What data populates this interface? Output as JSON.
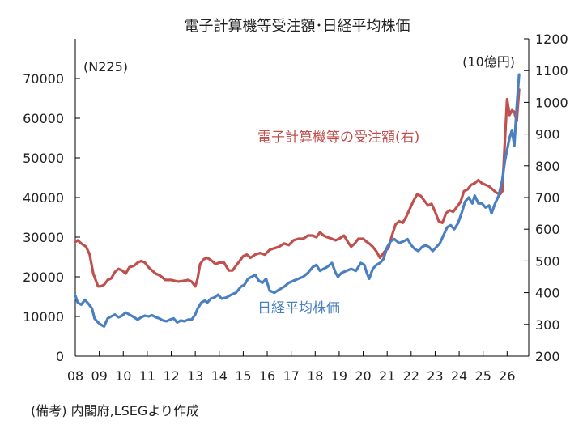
{
  "chart_data": {
    "type": "line",
    "title": "電子計算機等受注額･日経平均株価",
    "left_unit_label": "(N225)",
    "right_unit_label": "(10億円)",
    "note": "(備考) 内閣府,LSEGより作成",
    "x_tick_labels": [
      "08",
      "09",
      "10",
      "11",
      "12",
      "13",
      "14",
      "15",
      "16",
      "17",
      "18",
      "19",
      "20",
      "21",
      "22",
      "23",
      "24",
      "25",
      "26"
    ],
    "x_range": [
      2008.0,
      2026.9
    ],
    "y_left": {
      "range": [
        0,
        80000
      ],
      "ticks": [
        0,
        10000,
        20000,
        30000,
        40000,
        50000,
        60000,
        70000
      ]
    },
    "y_right": {
      "range": [
        200,
        1200
      ],
      "ticks": [
        200,
        300,
        400,
        500,
        600,
        700,
        800,
        900,
        1000,
        1100,
        1200
      ]
    },
    "grid": false,
    "colors": {
      "nikkei": "#4a7fc1",
      "orders": "#c0504d",
      "axis": "#000000"
    },
    "series": [
      {
        "name": "電子計算機等の受注額(右)",
        "axis": "right",
        "color": "#c0504d",
        "x": [
          2008.0,
          2008.1,
          2008.25,
          2008.45,
          2008.6,
          2008.75,
          2008.95,
          2009.05,
          2009.2,
          2009.35,
          2009.5,
          2009.65,
          2009.8,
          2009.95,
          2010.1,
          2010.25,
          2010.45,
          2010.6,
          2010.75,
          2010.9,
          2011.05,
          2011.2,
          2011.35,
          2011.5,
          2011.6,
          2011.75,
          2011.9,
          2012.0,
          2012.15,
          2012.3,
          2012.5,
          2012.7,
          2012.85,
          2013.0,
          2013.1,
          2013.2,
          2013.35,
          2013.5,
          2013.7,
          2013.85,
          2014.0,
          2014.2,
          2014.4,
          2014.55,
          2014.7,
          2014.85,
          2015.0,
          2015.15,
          2015.3,
          2015.5,
          2015.7,
          2015.9,
          2016.1,
          2016.3,
          2016.5,
          2016.7,
          2016.9,
          2017.1,
          2017.3,
          2017.5,
          2017.7,
          2017.9,
          2018.05,
          2018.2,
          2018.35,
          2018.5,
          2018.7,
          2018.85,
          2019.0,
          2019.2,
          2019.4,
          2019.5,
          2019.65,
          2019.8,
          2020.0,
          2020.15,
          2020.25,
          2020.4,
          2020.55,
          2020.7,
          2020.9,
          2021.05,
          2021.2,
          2021.35,
          2021.5,
          2021.65,
          2021.8,
          2021.95,
          2022.1,
          2022.25,
          2022.4,
          2022.55,
          2022.7,
          2022.85,
          2023.0,
          2023.15,
          2023.3,
          2023.45,
          2023.6,
          2023.75,
          2023.9,
          2024.05,
          2024.2,
          2024.35,
          2024.5,
          2024.65,
          2024.8,
          2024.95,
          2025.1,
          2025.25,
          2025.4,
          2025.55,
          2025.7,
          2025.8,
          2025.9,
          2026.0,
          2026.1,
          2026.2,
          2026.3,
          2026.4,
          2026.5
        ],
        "values": [
          560,
          565,
          555,
          545,
          520,
          460,
          420,
          420,
          425,
          440,
          445,
          465,
          475,
          470,
          460,
          480,
          485,
          495,
          500,
          495,
          480,
          470,
          460,
          455,
          450,
          440,
          440,
          440,
          437,
          435,
          437,
          440,
          435,
          420,
          445,
          490,
          505,
          510,
          500,
          490,
          495,
          495,
          470,
          470,
          485,
          500,
          515,
          520,
          510,
          520,
          525,
          520,
          535,
          540,
          545,
          555,
          550,
          565,
          570,
          570,
          580,
          580,
          575,
          590,
          580,
          575,
          570,
          565,
          570,
          580,
          555,
          545,
          555,
          570,
          570,
          560,
          555,
          545,
          530,
          510,
          530,
          540,
          580,
          615,
          625,
          620,
          640,
          665,
          690,
          710,
          705,
          690,
          675,
          680,
          655,
          625,
          620,
          650,
          660,
          655,
          670,
          685,
          720,
          725,
          740,
          745,
          755,
          745,
          740,
          735,
          725,
          715,
          710,
          720,
          870,
          1010,
          960,
          975,
          970,
          940,
          1040
        ]
      },
      {
        "name": "日経平均株価",
        "axis": "left",
        "color": "#4a7fc1",
        "x": [
          2008.0,
          2008.1,
          2008.25,
          2008.4,
          2008.55,
          2008.7,
          2008.8,
          2008.95,
          2009.05,
          2009.2,
          2009.35,
          2009.5,
          2009.65,
          2009.8,
          2009.95,
          2010.1,
          2010.25,
          2010.4,
          2010.6,
          2010.75,
          2010.9,
          2011.05,
          2011.2,
          2011.35,
          2011.5,
          2011.65,
          2011.8,
          2011.95,
          2012.1,
          2012.25,
          2012.4,
          2012.55,
          2012.7,
          2012.85,
          2013.0,
          2013.1,
          2013.25,
          2013.4,
          2013.5,
          2013.65,
          2013.8,
          2013.95,
          2014.1,
          2014.3,
          2014.5,
          2014.7,
          2014.9,
          2015.05,
          2015.2,
          2015.35,
          2015.5,
          2015.65,
          2015.8,
          2015.95,
          2016.1,
          2016.3,
          2016.5,
          2016.7,
          2016.9,
          2017.1,
          2017.3,
          2017.5,
          2017.7,
          2017.9,
          2018.05,
          2018.2,
          2018.35,
          2018.5,
          2018.7,
          2018.85,
          2018.95,
          2019.1,
          2019.3,
          2019.5,
          2019.7,
          2019.9,
          2020.05,
          2020.15,
          2020.25,
          2020.4,
          2020.55,
          2020.7,
          2020.85,
          2021.0,
          2021.15,
          2021.3,
          2021.5,
          2021.7,
          2021.85,
          2022.0,
          2022.15,
          2022.3,
          2022.45,
          2022.6,
          2022.75,
          2022.9,
          2023.05,
          2023.2,
          2023.35,
          2023.5,
          2023.65,
          2023.8,
          2023.95,
          2024.1,
          2024.25,
          2024.4,
          2024.55,
          2024.65,
          2024.8,
          2024.95,
          2025.1,
          2025.25,
          2025.35,
          2025.5,
          2025.65,
          2025.8,
          2025.9,
          2026.0,
          2026.1,
          2026.2,
          2026.3,
          2026.4,
          2026.5
        ],
        "values": [
          15300,
          13500,
          13000,
          14200,
          13200,
          12000,
          9500,
          8500,
          8000,
          7500,
          9500,
          10000,
          10500,
          9800,
          10200,
          11000,
          10500,
          10000,
          9200,
          9800,
          10200,
          10000,
          10300,
          9800,
          9500,
          9000,
          8800,
          9200,
          9500,
          8500,
          9000,
          8800,
          9200,
          9200,
          10500,
          12000,
          13500,
          14000,
          13500,
          14500,
          14800,
          15500,
          14500,
          14800,
          15500,
          16000,
          17500,
          18000,
          19500,
          20000,
          20500,
          19000,
          18500,
          19500,
          16500,
          16000,
          16800,
          17500,
          18500,
          19000,
          19500,
          20000,
          21000,
          22500,
          23000,
          21500,
          22000,
          22500,
          23500,
          21000,
          20000,
          21000,
          21500,
          22000,
          21500,
          23500,
          23000,
          21000,
          19500,
          22000,
          23000,
          23500,
          24500,
          27500,
          29000,
          29500,
          28500,
          29000,
          29500,
          28000,
          27000,
          26500,
          27500,
          28000,
          27500,
          26500,
          27500,
          28500,
          30500,
          32500,
          33000,
          32000,
          33500,
          36000,
          39000,
          40000,
          38500,
          40500,
          38500,
          38500,
          37500,
          38000,
          36000,
          38500,
          40500,
          44500,
          49000,
          52000,
          55000,
          57000,
          53000,
          63000,
          71000
        ]
      }
    ],
    "annotations": [
      {
        "key": "orders",
        "text": "電子計算機等の受注額(右)",
        "color": "#c0504d"
      },
      {
        "key": "nikkei",
        "text": "日経平均株価",
        "color": "#4a7fc1"
      }
    ]
  }
}
